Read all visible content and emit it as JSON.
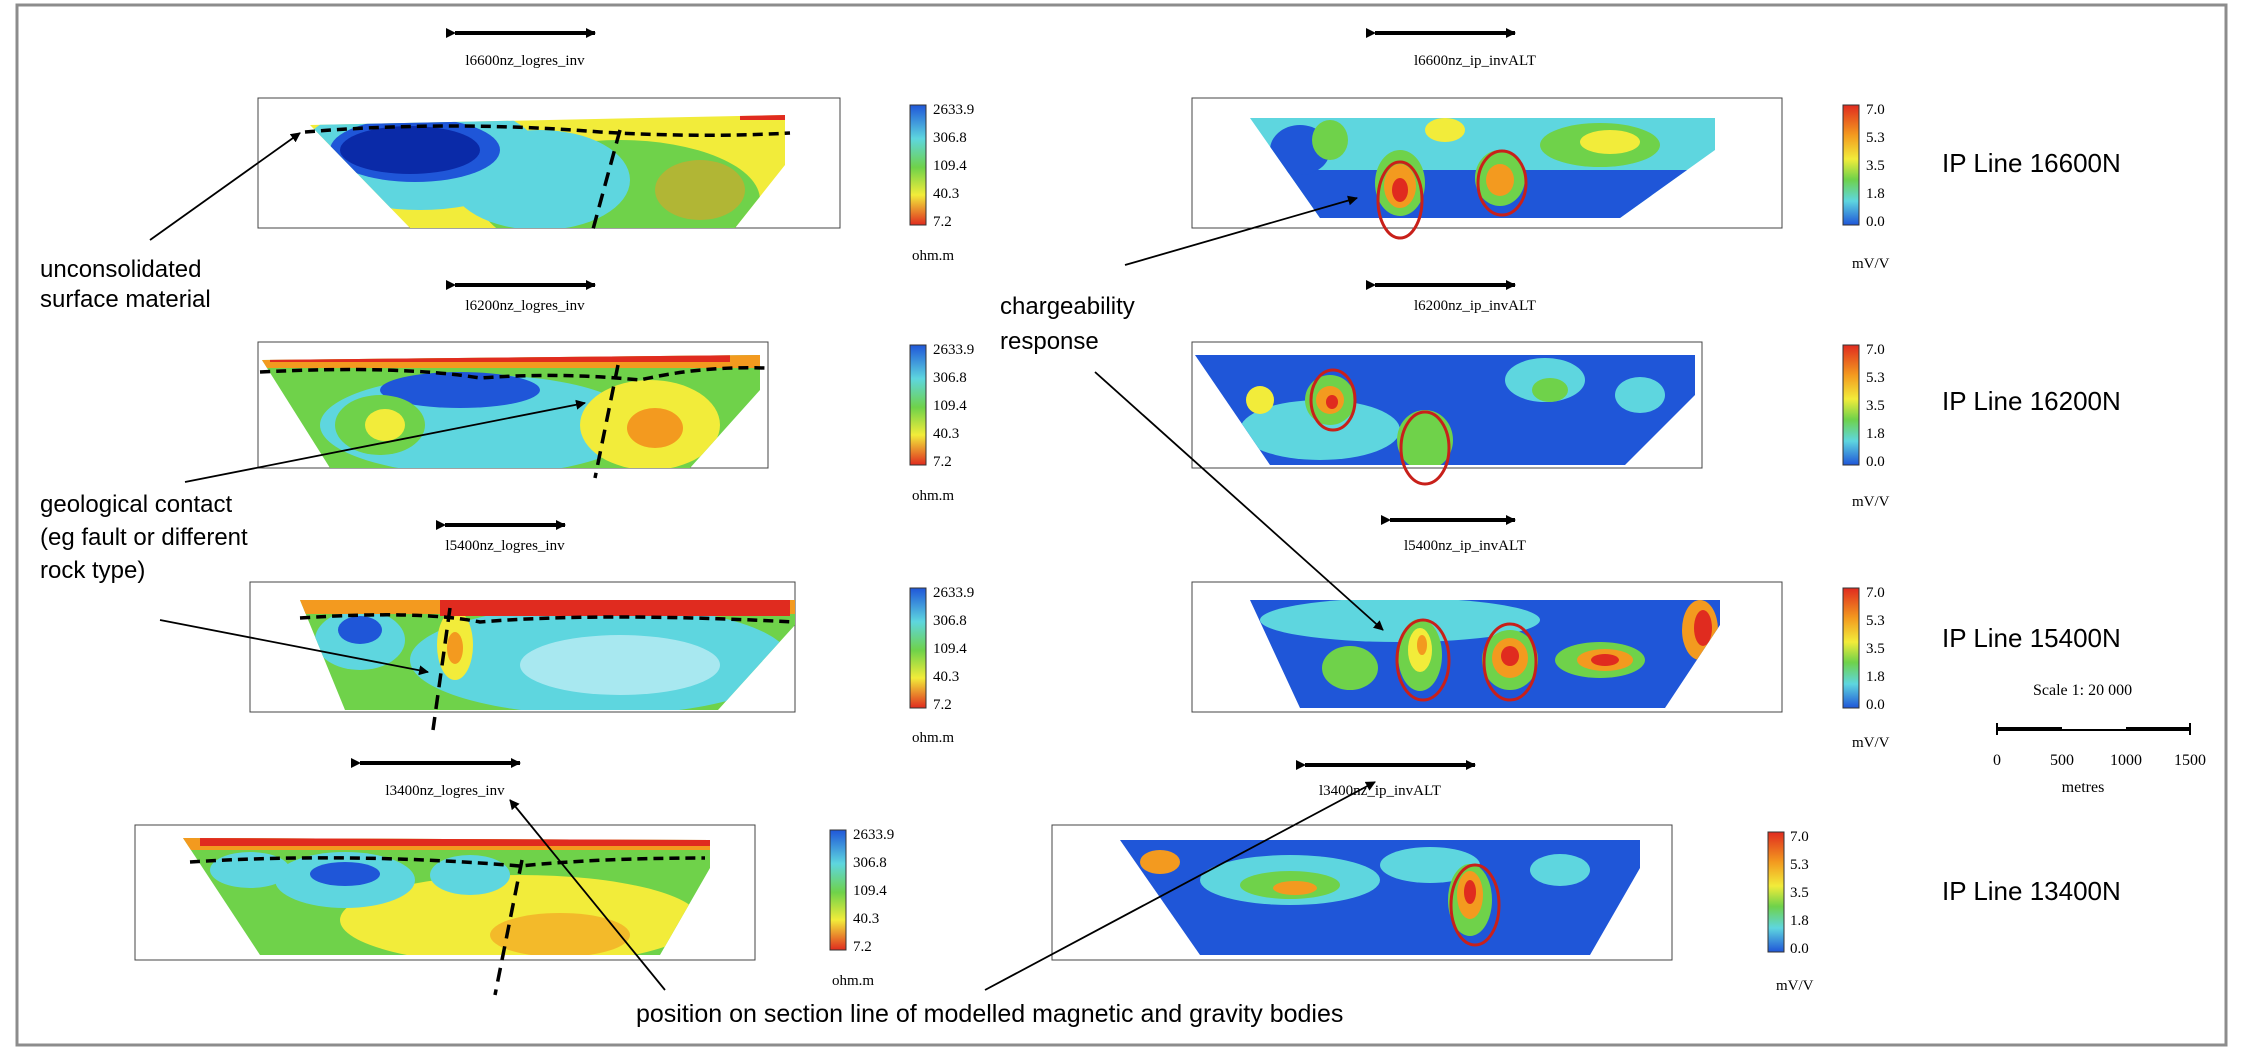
{
  "frame_color": "#8c8c8c",
  "colors": {
    "red": "#e02b1f",
    "orange": "#f39a1f",
    "yellow": "#f2ec3a",
    "green": "#6fd24a",
    "cyan": "#5ed6df",
    "blue": "#1f56d8",
    "navy": "#0a2aa8",
    "ellipse": "#c8201a"
  },
  "res_scale": {
    "values": [
      "2633.9",
      "306.8",
      "109.4",
      "40.3",
      "7.2"
    ],
    "unit": "ohm.m"
  },
  "ip_scale": {
    "values": [
      "7.0",
      "5.3",
      "3.5",
      "1.8",
      "0.0"
    ],
    "unit": "mV/V"
  },
  "sections": [
    {
      "res_title": "l6600nz_logres_inv",
      "ip_title": "l6600nz_ip_invALT",
      "line_label": "IP Line 16600N"
    },
    {
      "res_title": "l6200nz_logres_inv",
      "ip_title": "l6200nz_ip_invALT",
      "line_label": "IP Line 16200N"
    },
    {
      "res_title": "l5400nz_logres_inv",
      "ip_title": "l5400nz_ip_invALT",
      "line_label": "IP Line 15400N"
    },
    {
      "res_title": "l3400nz_logres_inv",
      "ip_title": "l3400nz_ip_invALT",
      "line_label": "IP Line 13400N"
    }
  ],
  "annotations": {
    "surface": [
      "unconsolidated",
      "surface material"
    ],
    "contact": [
      "geological contact",
      "(eg fault or different",
      "rock type)"
    ],
    "charge": [
      "chargeability",
      "response"
    ],
    "position": "position on section line of modelled magnetic and gravity bodies"
  },
  "scale_bar": {
    "title": "Scale 1:  20 000",
    "ticks": [
      "0",
      "500",
      "1000",
      "1500"
    ],
    "unit": "metres"
  }
}
